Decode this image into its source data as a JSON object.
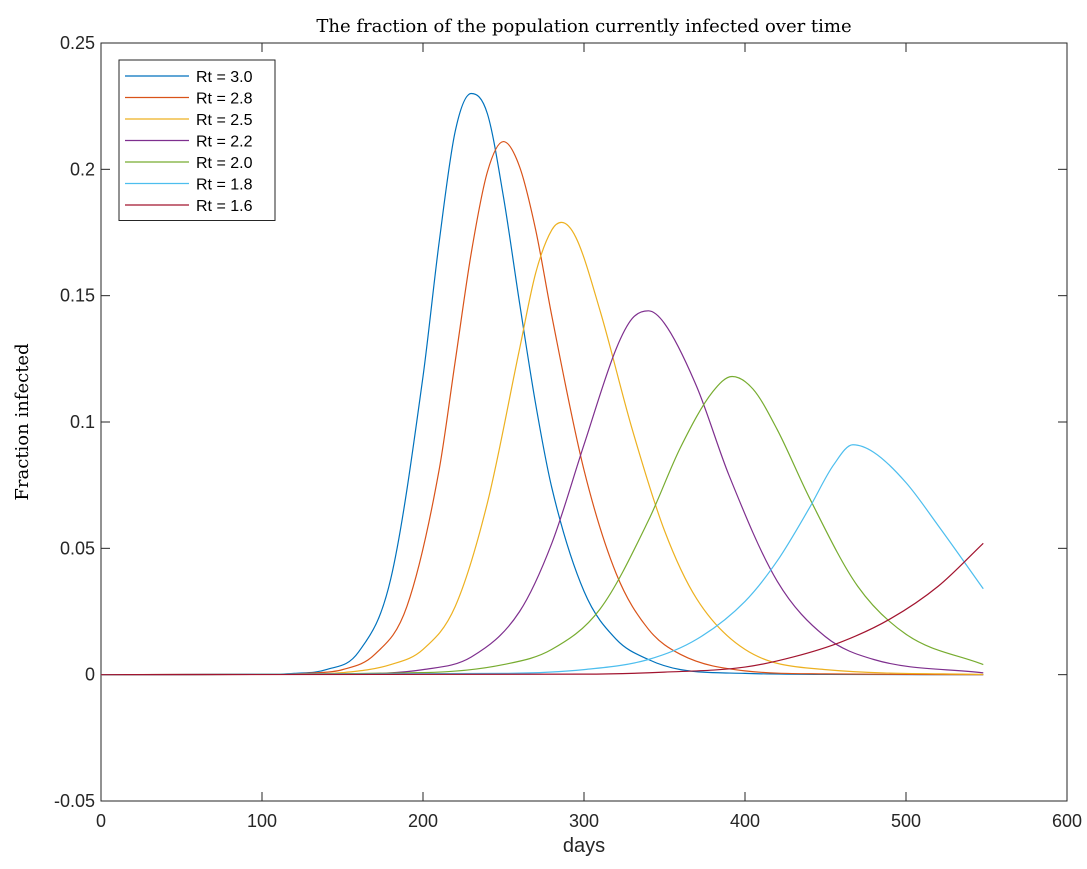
{
  "chart_data": {
    "type": "line",
    "title": "The fraction of the population currently infected over time",
    "xlabel": "days",
    "ylabel": "Fraction infected",
    "xlim": [
      0,
      600
    ],
    "ylim": [
      -0.05,
      0.25
    ],
    "xticks": [
      0,
      100,
      200,
      300,
      400,
      500,
      600
    ],
    "xtick_labels": [
      "0",
      "100",
      "200",
      "300",
      "400",
      "500",
      "600"
    ],
    "yticks": [
      -0.05,
      0,
      0.05,
      0.1,
      0.15,
      0.2,
      0.25
    ],
    "ytick_labels": [
      "-0.05",
      "0",
      "0.05",
      "0.1",
      "0.15",
      "0.2",
      "0.25"
    ],
    "grid": false,
    "legend_position": "top-left",
    "series": [
      {
        "name": "Rt = 3.0",
        "color": "#0072BD",
        "x": [
          0,
          100,
          120,
          140,
          160,
          180,
          200,
          210,
          220,
          230,
          240,
          250,
          260,
          270,
          280,
          300,
          320,
          340,
          360,
          400,
          450,
          548
        ],
        "y": [
          0,
          0.0001,
          0.0005,
          0.002,
          0.009,
          0.038,
          0.118,
          0.171,
          0.215,
          0.23,
          0.222,
          0.189,
          0.147,
          0.107,
          0.074,
          0.033,
          0.014,
          0.006,
          0.002,
          0.0005,
          0.0001,
          0
        ]
      },
      {
        "name": "Rt = 2.8",
        "color": "#D95319",
        "x": [
          0,
          100,
          130,
          150,
          170,
          190,
          210,
          220,
          230,
          240,
          250,
          260,
          270,
          280,
          300,
          320,
          340,
          360,
          400,
          450,
          548
        ],
        "y": [
          0,
          0.0001,
          0.0006,
          0.002,
          0.008,
          0.027,
          0.081,
          0.124,
          0.167,
          0.199,
          0.211,
          0.201,
          0.176,
          0.142,
          0.081,
          0.04,
          0.018,
          0.008,
          0.0015,
          0.0003,
          0
        ]
      },
      {
        "name": "Rt = 2.5",
        "color": "#EDB120",
        "x": [
          0,
          120,
          150,
          180,
          200,
          220,
          240,
          260,
          270,
          280,
          286,
          295,
          310,
          330,
          350,
          370,
          400,
          450,
          548
        ],
        "y": [
          0,
          0.0002,
          0.0008,
          0.004,
          0.01,
          0.027,
          0.068,
          0.129,
          0.159,
          0.176,
          0.179,
          0.173,
          0.144,
          0.097,
          0.057,
          0.03,
          0.01,
          0.002,
          0.0001
        ]
      },
      {
        "name": "Rt = 2.2",
        "color": "#7E2F8E",
        "x": [
          0,
          150,
          200,
          230,
          260,
          280,
          300,
          320,
          330,
          340,
          350,
          370,
          390,
          420,
          450,
          480,
          548
        ],
        "y": [
          0,
          0.0003,
          0.002,
          0.007,
          0.025,
          0.052,
          0.091,
          0.129,
          0.141,
          0.144,
          0.139,
          0.114,
          0.079,
          0.037,
          0.015,
          0.006,
          0.0007
        ]
      },
      {
        "name": "Rt = 2.0",
        "color": "#77AC30",
        "x": [
          0,
          200,
          250,
          280,
          310,
          340,
          360,
          380,
          392,
          405,
          420,
          440,
          470,
          500,
          548
        ],
        "y": [
          0,
          0.0008,
          0.004,
          0.01,
          0.026,
          0.061,
          0.09,
          0.112,
          0.118,
          0.113,
          0.097,
          0.07,
          0.035,
          0.016,
          0.004
        ]
      },
      {
        "name": "Rt = 1.8",
        "color": "#4DBEEE",
        "x": [
          0,
          250,
          300,
          340,
          370,
          400,
          420,
          440,
          455,
          467,
          480,
          500,
          520,
          548
        ],
        "y": [
          0,
          0.0005,
          0.002,
          0.006,
          0.014,
          0.029,
          0.045,
          0.066,
          0.083,
          0.091,
          0.088,
          0.076,
          0.059,
          0.034
        ]
      },
      {
        "name": "Rt = 1.6",
        "color": "#A2142F",
        "x": [
          0,
          300,
          350,
          400,
          430,
          460,
          490,
          520,
          548
        ],
        "y": [
          0,
          0.0002,
          0.001,
          0.003,
          0.007,
          0.013,
          0.022,
          0.035,
          0.052
        ]
      }
    ]
  }
}
